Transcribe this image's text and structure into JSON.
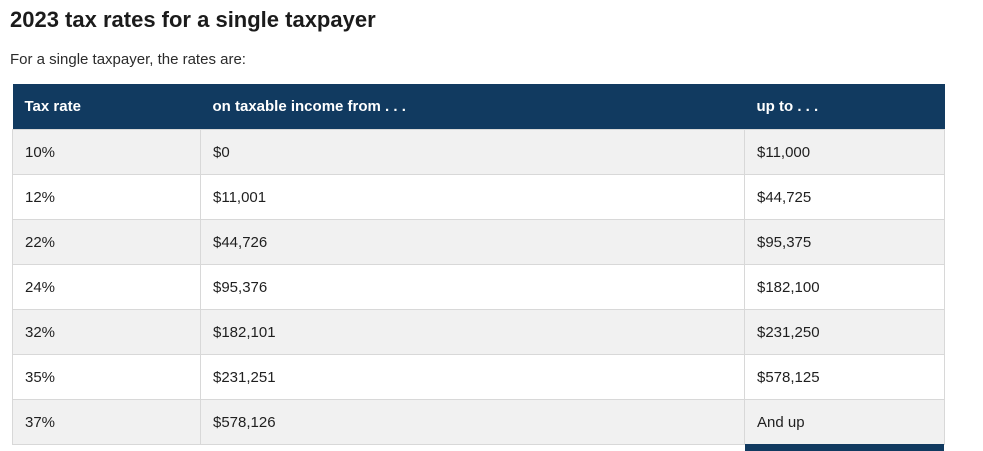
{
  "page": {
    "title": "2023 tax rates for a single taxpayer",
    "subtitle": "For a single taxpayer, the rates are:"
  },
  "table": {
    "columns": [
      "Tax rate",
      "on taxable income from . . .",
      "up to . . ."
    ],
    "rows": [
      {
        "rate": "10%",
        "from": "$0",
        "up_to": "$11,000"
      },
      {
        "rate": "12%",
        "from": "$11,001",
        "up_to": "$44,725"
      },
      {
        "rate": "22%",
        "from": "$44,726",
        "up_to": "$95,375"
      },
      {
        "rate": "24%",
        "from": "$95,376",
        "up_to": "$182,100"
      },
      {
        "rate": "32%",
        "from": "$182,101",
        "up_to": "$231,250"
      },
      {
        "rate": "35%",
        "from": "$231,251",
        "up_to": "$578,125"
      },
      {
        "rate": "37%",
        "from": "$578,126",
        "up_to": "And up"
      }
    ]
  },
  "colors": {
    "header_bg": "#113a60",
    "header_text": "#ffffff",
    "row_alt_bg": "#f1f1f1",
    "row_bg": "#ffffff",
    "border": "#d8d8d8",
    "body_text": "#1f1f1f",
    "title_text": "#1b1b1b"
  }
}
